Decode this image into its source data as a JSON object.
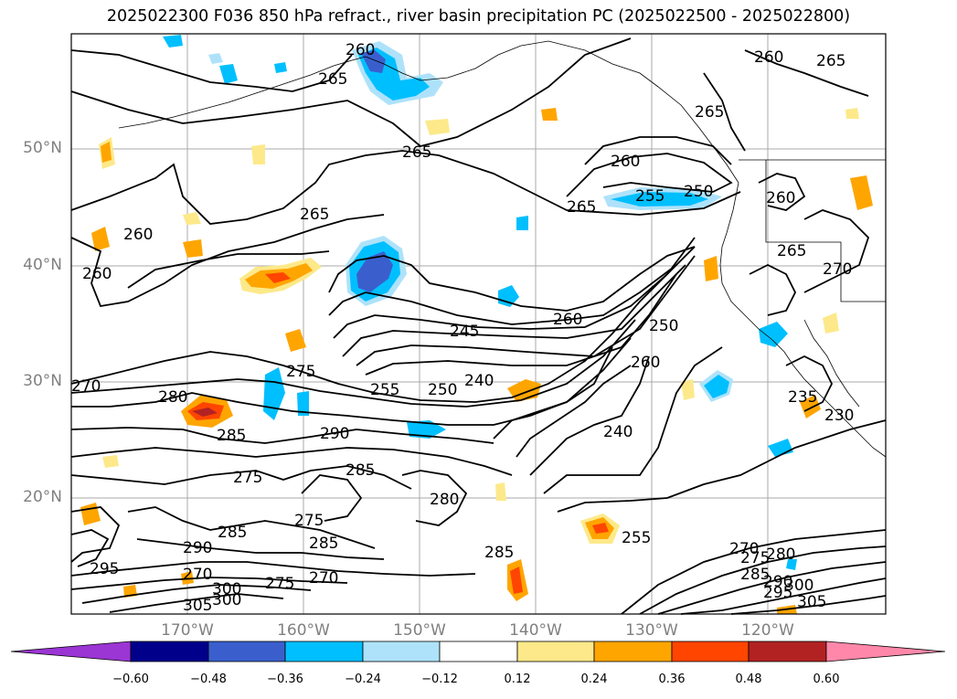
{
  "title": "2025022300 F036 850 hPa refract., river basin precipitation PC (2025022500 - 2025022800)",
  "lat_labels": [
    "50°N",
    "40°N",
    "30°N",
    "20°N"
  ],
  "lon_labels": [
    "170°W",
    "160°W",
    "150°W",
    "140°W",
    "130°W",
    "120°W"
  ],
  "colorbar": {
    "ticks": [
      "−0.60",
      "−0.48",
      "−0.36",
      "−0.24",
      "−0.12",
      "0.12",
      "0.24",
      "0.36",
      "0.48",
      "0.60"
    ],
    "colors": [
      "#9b35d4",
      "#00008b",
      "#3a5fcd",
      "#00bfff",
      "#aee2fa",
      "#ffffff",
      "#fde98a",
      "#ffa500",
      "#ff4500",
      "#b22222",
      "#ff88aa"
    ]
  },
  "contour_labels": [
    "260",
    "265",
    "265",
    "260",
    "265",
    "260",
    "260",
    "265",
    "265",
    "260",
    "255",
    "250",
    "265",
    "260",
    "265",
    "270",
    "260",
    "245",
    "250",
    "270",
    "280",
    "275",
    "255",
    "250",
    "240",
    "260",
    "240",
    "235",
    "230",
    "290",
    "285",
    "275",
    "285",
    "285",
    "275",
    "285",
    "280",
    "290",
    "285",
    "295",
    "270",
    "300",
    "275",
    "270",
    "305",
    "300",
    "270",
    "275",
    "280",
    "285",
    "290",
    "295",
    "300",
    "305",
    "255"
  ]
}
